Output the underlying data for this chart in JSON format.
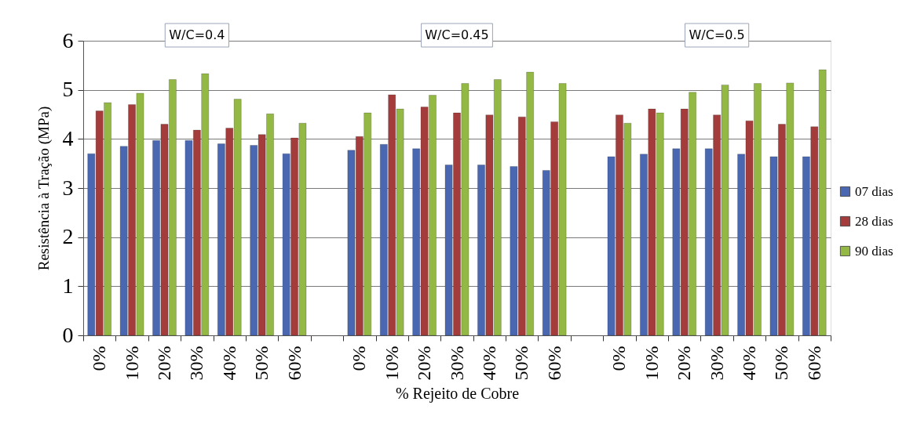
{
  "chart_data": {
    "type": "bar",
    "xlabel": "% Rejeito de Cobre",
    "ylabel": "Resistência à Tração (MPa)",
    "categories": [
      "0%",
      "10%",
      "20%",
      "30%",
      "40%",
      "50%",
      "60%",
      null,
      "0%",
      "10%",
      "20%",
      "30%",
      "40%",
      "50%",
      "60%",
      null,
      "0%",
      "10%",
      "20%",
      "30%",
      "40%",
      "50%",
      "60%"
    ],
    "series": [
      {
        "name": "07 dias",
        "color": "#4a68b2",
        "values": [
          3.7,
          3.85,
          3.97,
          3.97,
          3.9,
          3.87,
          3.7,
          null,
          3.77,
          3.89,
          3.8,
          3.47,
          3.47,
          3.44,
          3.36,
          null,
          3.64,
          3.69,
          3.8,
          3.8,
          3.69,
          3.64,
          3.64
        ]
      },
      {
        "name": "28 dias",
        "color": "#a33c3a",
        "values": [
          4.57,
          4.7,
          4.3,
          4.18,
          4.22,
          4.09,
          4.02,
          null,
          4.05,
          4.9,
          4.65,
          4.53,
          4.49,
          4.45,
          4.35,
          null,
          4.49,
          4.61,
          4.61,
          4.49,
          4.37,
          4.3,
          4.25
        ]
      },
      {
        "name": "90 dias",
        "color": "#93b844",
        "values": [
          4.74,
          4.93,
          5.21,
          5.33,
          4.81,
          4.51,
          4.32,
          null,
          4.53,
          4.61,
          4.89,
          5.13,
          5.21,
          5.36,
          5.13,
          null,
          4.32,
          4.53,
          4.95,
          5.1,
          5.13,
          5.14,
          5.41
        ]
      }
    ],
    "ylim": [
      0,
      6
    ],
    "yticks": [
      0,
      1,
      2,
      3,
      4,
      5,
      6
    ],
    "grid": "y",
    "legend": "right",
    "annotations": [
      "W/C=0.4",
      "W/C=0.45",
      "W/C=0.5"
    ]
  }
}
